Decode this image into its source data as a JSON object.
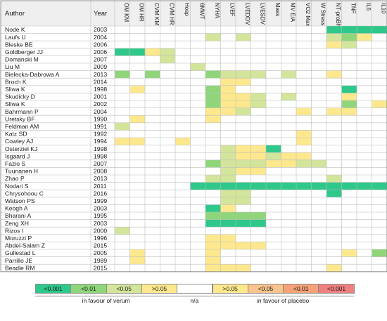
{
  "chart_data": {
    "type": "heatmap",
    "row_header": "Author",
    "year_header": "Year",
    "columns": [
      "OM KM",
      "OM HR",
      "CVM KM",
      "CVM HR",
      "Hosp",
      "6MWT",
      "NYHA",
      "LVEF",
      "LVEDDV",
      "LVESDV",
      "Mass",
      "MV E/A",
      "VO2 Max",
      "W Stress",
      "NT-proBNP",
      "TNF",
      "IL6",
      "IL10"
    ],
    "rows": [
      {
        "author": "Node K",
        "year": "2003",
        "cells": [
          null,
          null,
          null,
          null,
          null,
          null,
          null,
          null,
          null,
          null,
          null,
          null,
          null,
          null,
          "<0.001",
          "<0.001",
          "<0.001",
          "<0.001"
        ]
      },
      {
        "author": "Laufs U",
        "year": "2004",
        "cells": [
          null,
          null,
          null,
          null,
          null,
          null,
          "<0.05",
          null,
          "<0.05",
          null,
          null,
          null,
          null,
          null,
          "<0.05",
          "<0.01",
          ">0.05",
          null
        ]
      },
      {
        "author": "Bleske BE",
        "year": "2006",
        "cells": [
          null,
          null,
          null,
          null,
          null,
          null,
          null,
          null,
          null,
          null,
          null,
          null,
          null,
          null,
          ">0.05",
          "<0.05",
          null,
          null
        ]
      },
      {
        "author": "Goldberger JJ",
        "year": "2006",
        "cells": [
          "<0.001",
          "<0.001",
          ">0.05",
          "<0.05",
          null,
          null,
          null,
          null,
          null,
          null,
          null,
          null,
          null,
          null,
          null,
          null,
          null,
          null
        ]
      },
      {
        "author": "Domanski M",
        "year": "2007",
        "cells": [
          null,
          null,
          null,
          "<0.05",
          null,
          null,
          null,
          null,
          null,
          null,
          null,
          null,
          null,
          null,
          null,
          null,
          null,
          null
        ]
      },
      {
        "author": "Liu M",
        "year": "2009",
        "cells": [
          null,
          null,
          null,
          null,
          null,
          "<0.05",
          null,
          null,
          null,
          null,
          null,
          null,
          null,
          null,
          null,
          null,
          null,
          null
        ]
      },
      {
        "author": "Bielecka-Dabrowa A",
        "year": "2013",
        "cells": [
          "<0.01",
          null,
          "<0.01",
          null,
          null,
          null,
          "<0.01",
          "<0.05",
          "<0.05",
          "<0.05",
          null,
          "<0.05",
          null,
          null,
          ">0.05",
          null,
          null,
          null
        ]
      },
      {
        "author": "Broch K",
        "year": "2014",
        "cells": [
          null,
          null,
          null,
          null,
          null,
          null,
          null,
          ">0.05",
          ">0.05",
          null,
          null,
          null,
          null,
          null,
          null,
          null,
          null,
          null
        ]
      },
      {
        "author": "Sliwa K",
        "year": "1998",
        "cells": [
          null,
          ">0.05",
          null,
          null,
          null,
          null,
          "<0.01",
          ">0.05",
          null,
          null,
          null,
          null,
          null,
          null,
          null,
          "<0.001",
          null,
          null
        ]
      },
      {
        "author": "Skudicky D",
        "year": "2001",
        "cells": [
          null,
          null,
          null,
          null,
          null,
          null,
          "<0.01",
          ">0.05",
          ">0.05",
          "<0.05",
          null,
          "<0.05",
          null,
          null,
          null,
          ">0.05",
          null,
          null
        ]
      },
      {
        "author": "Sliwa K",
        "year": "2002",
        "cells": [
          null,
          null,
          null,
          null,
          null,
          null,
          "<0.01",
          ">0.05",
          ">0.05",
          "<0.05",
          null,
          null,
          null,
          null,
          null,
          "<0.01",
          null,
          ">0.05"
        ]
      },
      {
        "author": "Bahrmann P",
        "year": "2004",
        "cells": [
          null,
          null,
          null,
          null,
          null,
          null,
          ">0.05",
          ">0.05",
          "<0.05",
          null,
          null,
          null,
          ">0.05",
          null,
          ">0.05",
          ">0.05",
          null,
          null
        ]
      },
      {
        "author": "Uretsky BF",
        "year": "1990",
        "cells": [
          null,
          ">0.05",
          null,
          null,
          null,
          null,
          ">0.05",
          null,
          null,
          null,
          null,
          null,
          null,
          null,
          null,
          null,
          null,
          null
        ]
      },
      {
        "author": "Feldman AM",
        "year": "1991",
        "cells": [
          "<0.05",
          null,
          null,
          null,
          null,
          null,
          null,
          null,
          null,
          null,
          null,
          null,
          null,
          null,
          null,
          null,
          null,
          null
        ]
      },
      {
        "author": "Katz SD",
        "year": "1992",
        "cells": [
          null,
          null,
          null,
          null,
          null,
          null,
          null,
          null,
          null,
          null,
          null,
          null,
          ">0.05",
          null,
          null,
          null,
          null,
          null
        ]
      },
      {
        "author": "Cowley AJ",
        "year": "1994",
        "cells": [
          ">0.05",
          ">0.05",
          null,
          null,
          ">0.05",
          null,
          null,
          null,
          null,
          null,
          null,
          null,
          ">0.05",
          null,
          null,
          null,
          null,
          null
        ]
      },
      {
        "author": "Osterziel KJ",
        "year": "1998",
        "cells": [
          null,
          null,
          null,
          null,
          null,
          null,
          null,
          "<0.05",
          ">0.05",
          ">0.05",
          "<0.001",
          null,
          null,
          null,
          null,
          null,
          null,
          null
        ]
      },
      {
        "author": "Isgaard J",
        "year": "1998",
        "cells": [
          null,
          null,
          null,
          null,
          null,
          null,
          null,
          "<0.05",
          ">0.05",
          ">0.05",
          "<0.05",
          ">0.05",
          ">0.05",
          null,
          null,
          null,
          null,
          null
        ]
      },
      {
        "author": "Fazio S",
        "year": "2007",
        "cells": [
          null,
          null,
          null,
          null,
          null,
          null,
          "<0.01",
          "<0.05",
          "<0.05",
          "<0.05",
          ">0.05",
          ">0.05",
          "<0.05",
          "<0.05",
          null,
          null,
          null,
          null
        ]
      },
      {
        "author": "Tuunanen H",
        "year": "2008",
        "cells": [
          null,
          null,
          null,
          null,
          null,
          null,
          null,
          "<0.05",
          ">0.05",
          ">0.05",
          null,
          null,
          null,
          null,
          null,
          null,
          null,
          null
        ]
      },
      {
        "author": "Zhao P",
        "year": "2013",
        "cells": [
          null,
          null,
          null,
          null,
          null,
          null,
          "<0.05",
          "<0.05",
          null,
          null,
          null,
          null,
          null,
          null,
          "<0.05",
          null,
          null,
          null
        ]
      },
      {
        "author": "Nodari S",
        "year": "2011",
        "cells": [
          null,
          null,
          null,
          null,
          null,
          "<0.001",
          "<0.001",
          "<0.001",
          "<0.001",
          "<0.001",
          "<0.001",
          "<0.001",
          "<0.001",
          "<0.001",
          "<0.001",
          "<0.001",
          "<0.001",
          "<0.001"
        ]
      },
      {
        "author": "Chrysohoou C",
        "year": "2016",
        "cells": [
          null,
          null,
          null,
          null,
          null,
          null,
          null,
          "<0.05",
          "<0.05",
          null,
          null,
          null,
          null,
          null,
          "<0.001",
          null,
          null,
          null
        ]
      },
      {
        "author": "Watson PS",
        "year": "1999",
        "cells": [
          null,
          null,
          null,
          null,
          null,
          null,
          null,
          "<0.05",
          "<0.05",
          null,
          null,
          null,
          null,
          null,
          null,
          null,
          null,
          null
        ]
      },
      {
        "author": "Keogh A",
        "year": "2003",
        "cells": [
          null,
          null,
          null,
          null,
          null,
          null,
          "<0.001",
          ">0.05",
          null,
          null,
          null,
          null,
          null,
          null,
          null,
          null,
          null,
          null
        ]
      },
      {
        "author": "Bharani A",
        "year": "1995",
        "cells": [
          null,
          null,
          null,
          null,
          null,
          null,
          "<0.01",
          "<0.01",
          "<0.01",
          "<0.01",
          null,
          null,
          null,
          null,
          null,
          null,
          null,
          null
        ]
      },
      {
        "author": "Zeng XH",
        "year": "2003",
        "cells": [
          null,
          null,
          null,
          null,
          null,
          null,
          "<0.001",
          "<0.001",
          "<0.001",
          "<0.001",
          null,
          null,
          null,
          null,
          null,
          null,
          null,
          null
        ]
      },
      {
        "author": "Rizos I",
        "year": "2000",
        "cells": [
          "<0.05",
          null,
          null,
          null,
          null,
          null,
          null,
          null,
          null,
          null,
          null,
          null,
          null,
          null,
          null,
          null,
          null,
          null
        ]
      },
      {
        "author": "Moruzzi P",
        "year": "1996",
        "cells": [
          null,
          null,
          null,
          null,
          null,
          null,
          ">0.05",
          ">0.05",
          null,
          null,
          null,
          null,
          null,
          null,
          null,
          null,
          null,
          null
        ]
      },
      {
        "author": "Abdel-Salam Z",
        "year": "2015",
        "cells": [
          null,
          null,
          null,
          null,
          null,
          null,
          ">0.05",
          ">0.05",
          ">0.05",
          ">0.05",
          null,
          null,
          null,
          null,
          null,
          null,
          null,
          null
        ]
      },
      {
        "author": "Gullestad L",
        "year": "2005",
        "cells": [
          null,
          ">0.05",
          null,
          null,
          null,
          null,
          ">0.05",
          null,
          null,
          null,
          null,
          null,
          null,
          null,
          null,
          ">0.05",
          null,
          "<0.01"
        ]
      },
      {
        "author": "Parrillo JE",
        "year": "1989",
        "cells": [
          null,
          ">0.05",
          null,
          null,
          null,
          null,
          ">0.05",
          null,
          null,
          null,
          null,
          null,
          null,
          null,
          null,
          null,
          null,
          null
        ]
      },
      {
        "author": "Beadle RM",
        "year": "2015",
        "cells": [
          null,
          null,
          null,
          null,
          null,
          null,
          ">0.05",
          ">0.05",
          ">0.05",
          null,
          null,
          null,
          null,
          null,
          ">0.05",
          null,
          null,
          null
        ]
      }
    ],
    "legend": {
      "levels": [
        {
          "label": "<0.001",
          "side": "verum",
          "color": "#2ec88a"
        },
        {
          "label": "<0.01",
          "side": "verum",
          "color": "#8fd67a"
        },
        {
          "label": "<0.05",
          "side": "verum",
          "color": "#d3e59a"
        },
        {
          "label": ">0.05",
          "side": "verum",
          "color": "#fde88e"
        },
        {
          "label": "",
          "side": "n/a",
          "color": "#ffffff"
        },
        {
          "label": ">0.05",
          "side": "placebo",
          "color": "#fde88e"
        },
        {
          "label": "<0.05",
          "side": "placebo",
          "color": "#f9c48d"
        },
        {
          "label": "<0.01",
          "side": "placebo",
          "color": "#f6a178"
        },
        {
          "label": "<0.001",
          "side": "placebo",
          "color": "#f08080"
        }
      ],
      "caption_verum": "in favour of verum",
      "caption_na": "n/a",
      "caption_placebo": "in favour of placebo"
    },
    "colors": {
      "<0.001": "#2ec88a",
      "<0.01": "#8fd67a",
      "<0.05": "#d3e59a",
      ">0.05": "#fde88e",
      "header_bg": "#efefef",
      "grid": "#bdbdbd",
      "border": "#8c8c8c"
    }
  }
}
